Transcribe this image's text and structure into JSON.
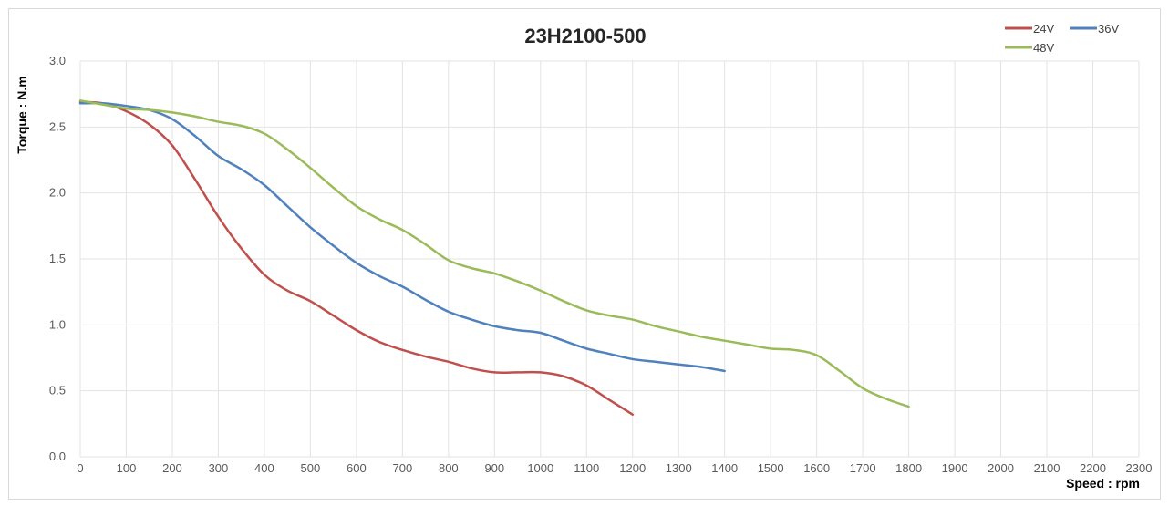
{
  "chart_data": {
    "type": "line",
    "title": "23H2100-500",
    "xlabel": "Speed : rpm",
    "ylabel": "Torque : N.m",
    "xlim": [
      0,
      2300
    ],
    "ylim": [
      0,
      3.0
    ],
    "xticks": [
      "0",
      "100",
      "200",
      "300",
      "400",
      "500",
      "600",
      "700",
      "800",
      "900",
      "1000",
      "1100",
      "1200",
      "1300",
      "1400",
      "1500",
      "1600",
      "1700",
      "1800",
      "1900",
      "2000",
      "2100",
      "2200",
      "2300"
    ],
    "yticks": [
      "0.0",
      "0.5",
      "1.0",
      "1.5",
      "2.0",
      "2.5",
      "3.0"
    ],
    "grid": true,
    "legend_position": "top-right",
    "series": [
      {
        "name": "24V",
        "color": "#c0504d",
        "points": [
          [
            0,
            2.69
          ],
          [
            50,
            2.68
          ],
          [
            100,
            2.62
          ],
          [
            150,
            2.52
          ],
          [
            200,
            2.36
          ],
          [
            250,
            2.1
          ],
          [
            300,
            1.82
          ],
          [
            350,
            1.58
          ],
          [
            400,
            1.38
          ],
          [
            450,
            1.26
          ],
          [
            500,
            1.18
          ],
          [
            550,
            1.07
          ],
          [
            600,
            0.96
          ],
          [
            650,
            0.87
          ],
          [
            700,
            0.81
          ],
          [
            750,
            0.76
          ],
          [
            800,
            0.72
          ],
          [
            850,
            0.67
          ],
          [
            900,
            0.64
          ],
          [
            950,
            0.64
          ],
          [
            1000,
            0.64
          ],
          [
            1050,
            0.61
          ],
          [
            1100,
            0.54
          ],
          [
            1150,
            0.43
          ],
          [
            1200,
            0.32
          ]
        ]
      },
      {
        "name": "36V",
        "color": "#4f81bd",
        "points": [
          [
            0,
            2.68
          ],
          [
            50,
            2.68
          ],
          [
            100,
            2.66
          ],
          [
            150,
            2.63
          ],
          [
            200,
            2.56
          ],
          [
            250,
            2.43
          ],
          [
            300,
            2.28
          ],
          [
            350,
            2.18
          ],
          [
            400,
            2.06
          ],
          [
            450,
            1.9
          ],
          [
            500,
            1.74
          ],
          [
            550,
            1.6
          ],
          [
            600,
            1.47
          ],
          [
            650,
            1.37
          ],
          [
            700,
            1.29
          ],
          [
            750,
            1.19
          ],
          [
            800,
            1.1
          ],
          [
            850,
            1.04
          ],
          [
            900,
            0.99
          ],
          [
            950,
            0.96
          ],
          [
            1000,
            0.94
          ],
          [
            1050,
            0.88
          ],
          [
            1100,
            0.82
          ],
          [
            1150,
            0.78
          ],
          [
            1200,
            0.74
          ],
          [
            1250,
            0.72
          ],
          [
            1300,
            0.7
          ],
          [
            1350,
            0.68
          ],
          [
            1400,
            0.65
          ]
        ]
      },
      {
        "name": "48V",
        "color": "#9bbb59",
        "points": [
          [
            0,
            2.7
          ],
          [
            50,
            2.67
          ],
          [
            100,
            2.64
          ],
          [
            150,
            2.63
          ],
          [
            200,
            2.61
          ],
          [
            250,
            2.58
          ],
          [
            300,
            2.54
          ],
          [
            350,
            2.51
          ],
          [
            400,
            2.45
          ],
          [
            450,
            2.33
          ],
          [
            500,
            2.19
          ],
          [
            550,
            2.04
          ],
          [
            600,
            1.9
          ],
          [
            650,
            1.8
          ],
          [
            700,
            1.72
          ],
          [
            750,
            1.61
          ],
          [
            800,
            1.49
          ],
          [
            850,
            1.43
          ],
          [
            900,
            1.39
          ],
          [
            950,
            1.33
          ],
          [
            1000,
            1.26
          ],
          [
            1050,
            1.18
          ],
          [
            1100,
            1.11
          ],
          [
            1150,
            1.07
          ],
          [
            1200,
            1.04
          ],
          [
            1250,
            0.99
          ],
          [
            1300,
            0.95
          ],
          [
            1350,
            0.91
          ],
          [
            1400,
            0.88
          ],
          [
            1450,
            0.85
          ],
          [
            1500,
            0.82
          ],
          [
            1550,
            0.81
          ],
          [
            1600,
            0.77
          ],
          [
            1650,
            0.65
          ],
          [
            1700,
            0.52
          ],
          [
            1750,
            0.44
          ],
          [
            1800,
            0.38
          ]
        ]
      }
    ]
  }
}
